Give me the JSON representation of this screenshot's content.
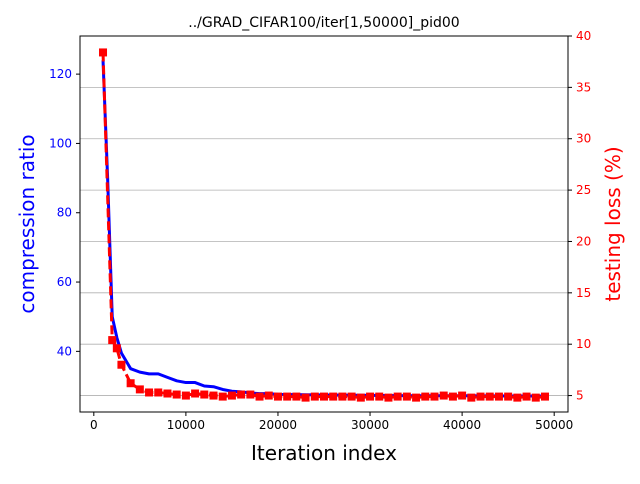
{
  "chart_data": {
    "type": "line",
    "title": "../GRAD_CIFAR100/iter[1,50000]_pid00",
    "xlabel": "Iteration index",
    "ylabel_left": "compression ratio",
    "ylabel_right": "testing loss (%)",
    "xlim": [
      -1500,
      51500
    ],
    "ylim_left": [
      22.5,
      131.0
    ],
    "ylim_right": [
      3.4,
      40.0
    ],
    "x_ticks": [
      0,
      10000,
      20000,
      30000,
      40000,
      50000
    ],
    "y_left_ticks": [
      40,
      60,
      80,
      100,
      120
    ],
    "y_right_ticks": [
      5,
      10,
      15,
      20,
      25,
      30,
      35,
      40
    ],
    "grid": "horizontal lines at right-axis ticks",
    "colors": {
      "left": "#0000ff",
      "right": "#ff0000",
      "grid": "#b0b0b0",
      "axes": "#000000"
    },
    "series": [
      {
        "axis": "left",
        "color": "#0000ff",
        "style": "solid",
        "x": [
          1000,
          1500,
          2000,
          2500,
          3000,
          4000,
          5000,
          6000,
          7000,
          8000,
          9000,
          10000,
          11000,
          12000,
          13000,
          14000,
          15000,
          16000,
          17000,
          18000,
          19000,
          20000,
          25000,
          30000,
          35000,
          40000,
          45000,
          49000
        ],
        "values": [
          124,
          90,
          50,
          44,
          39.5,
          35,
          34,
          33.5,
          33.5,
          32.5,
          31.5,
          31,
          31,
          30,
          29.8,
          29,
          28.5,
          28.3,
          28,
          27.8,
          27.8,
          27.6,
          27.4,
          27.3,
          27.2,
          27.2,
          27.1,
          27.1
        ]
      },
      {
        "axis": "right",
        "color": "#ff0000",
        "style": "dashed",
        "marker": "square",
        "x": [
          1000,
          2000,
          2500,
          3000,
          4000,
          5000,
          6000,
          7000,
          8000,
          9000,
          10000,
          11000,
          12000,
          13000,
          14000,
          15000,
          16000,
          17000,
          18000,
          19000,
          20000,
          21000,
          22000,
          23000,
          24000,
          25000,
          26000,
          27000,
          28000,
          29000,
          30000,
          31000,
          32000,
          33000,
          34000,
          35000,
          36000,
          37000,
          38000,
          39000,
          40000,
          41000,
          42000,
          43000,
          44000,
          45000,
          46000,
          47000,
          48000,
          49000
        ],
        "values": [
          38.4,
          10.4,
          9.6,
          8.0,
          6.2,
          5.6,
          5.3,
          5.3,
          5.2,
          5.1,
          5.0,
          5.2,
          5.1,
          5.0,
          4.9,
          5.0,
          5.1,
          5.1,
          4.9,
          5.0,
          4.9,
          4.9,
          4.9,
          4.8,
          4.9,
          4.9,
          4.9,
          4.9,
          4.9,
          4.8,
          4.9,
          4.9,
          4.8,
          4.9,
          4.9,
          4.8,
          4.9,
          4.9,
          5.0,
          4.9,
          5.0,
          4.8,
          4.9,
          4.9,
          4.9,
          4.9,
          4.8,
          4.9,
          4.8,
          4.9
        ]
      }
    ]
  }
}
